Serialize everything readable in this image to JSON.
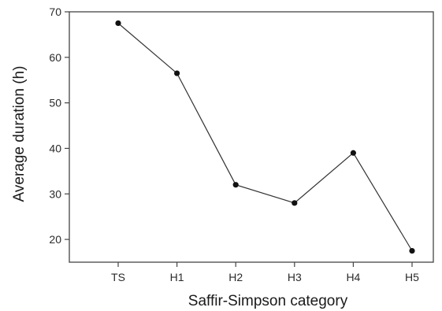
{
  "chart_data": {
    "type": "line",
    "title": "",
    "xlabel": "Saffir-Simpson category",
    "ylabel": "Average duration (h)",
    "categories": [
      "TS",
      "H1",
      "H2",
      "H3",
      "H4",
      "H5"
    ],
    "series": [
      {
        "values": [
          67.5,
          56.5,
          32,
          28,
          39,
          17.5
        ]
      }
    ],
    "ylim": [
      15,
      70
    ],
    "yticks": [
      20,
      30,
      40,
      50,
      60,
      70
    ],
    "grid": false,
    "colors": {
      "line": "#333333",
      "marker": "#111111",
      "axis": "#444444"
    }
  }
}
